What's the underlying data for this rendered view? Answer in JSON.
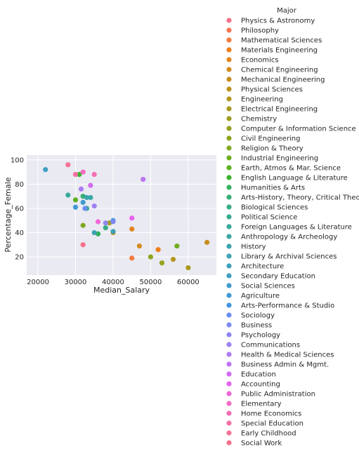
{
  "chart_data": {
    "type": "scatter",
    "title": "",
    "xlabel": "Median_Salary",
    "ylabel": "Percentage_Female",
    "xlim": [
      17000,
      67500
    ],
    "ylim": [
      5,
      104
    ],
    "x_ticks": [
      20000,
      30000,
      40000,
      50000,
      60000
    ],
    "x_tick_labels": [
      "20000",
      "30000",
      "40000",
      "50000",
      "60000"
    ],
    "y_ticks": [
      20,
      40,
      60,
      80,
      100
    ],
    "y_tick_labels": [
      "20",
      "40",
      "60",
      "80",
      "100"
    ],
    "grid": true,
    "legend_title": "Major",
    "legend_placement": "right, outside plot",
    "series": [
      {
        "name": "Physics & Astronomy",
        "color": "#f77189",
        "points": [
          [
            32000,
            30
          ]
        ]
      },
      {
        "name": "Philosophy",
        "color": "#f7754f",
        "points": [
          [
            30000,
            88
          ]
        ]
      },
      {
        "name": "Mathematical Sciences",
        "color": "#f57a3e",
        "points": [
          [
            45000,
            19
          ]
        ]
      },
      {
        "name": "Materials Engineering",
        "color": "#ef7f1a",
        "points": [
          [
            52000,
            26
          ]
        ]
      },
      {
        "name": "Economics",
        "color": "#e2851d",
        "points": [
          [
            45000,
            43
          ]
        ]
      },
      {
        "name": "Chemical Engineering",
        "color": "#d48a1d",
        "points": [
          [
            47000,
            29
          ]
        ]
      },
      {
        "name": "Mechanical Engineering",
        "color": "#c78e1e",
        "points": [
          [
            65000,
            32
          ]
        ]
      },
      {
        "name": "Physical Sciences",
        "color": "#bc921e",
        "points": [
          [
            40000,
            40
          ]
        ]
      },
      {
        "name": "Engineering",
        "color": "#b2961f",
        "points": [
          [
            56000,
            18
          ]
        ]
      },
      {
        "name": "Electrical Engineering",
        "color": "#a89a20",
        "points": [
          [
            60000,
            11
          ]
        ]
      },
      {
        "name": "Chemistry",
        "color": "#a09d20",
        "points": [
          [
            39000,
            48
          ]
        ]
      },
      {
        "name": "Computer & Information Science",
        "color": "#96a120",
        "points": [
          [
            53000,
            15
          ]
        ]
      },
      {
        "name": "Civil Engineering",
        "color": "#8ca520",
        "points": [
          [
            50000,
            20
          ]
        ]
      },
      {
        "name": "Religion & Theory",
        "color": "#80a920",
        "points": [
          [
            32000,
            46
          ]
        ]
      },
      {
        "name": "Industrial Engineering",
        "color": "#70ad21",
        "points": [
          [
            57000,
            29
          ]
        ]
      },
      {
        "name": "Earth, Atmos & Mar. Science",
        "color": "#5cb11f",
        "points": [
          [
            30000,
            67
          ]
        ]
      },
      {
        "name": "English Language & Literature",
        "color": "#39b42b",
        "points": [
          [
            31000,
            88
          ]
        ]
      },
      {
        "name": "Humanities & Arts",
        "color": "#34b15e",
        "points": [
          [
            36000,
            39
          ]
        ]
      },
      {
        "name": "Arts-History, Theory, Critical Theory",
        "color": "#36ae76",
        "points": [
          [
            32000,
            70
          ]
        ]
      },
      {
        "name": "Biological Sciences",
        "color": "#37ac86",
        "points": [
          [
            38000,
            44
          ]
        ]
      },
      {
        "name": "Political Science",
        "color": "#38aa92",
        "points": [
          [
            33000,
            60
          ]
        ]
      },
      {
        "name": "Foreign Languages & Literature",
        "color": "#39a99c",
        "points": [
          [
            28000,
            71
          ]
        ]
      },
      {
        "name": "Anthropology & Archeology",
        "color": "#3aa7a5",
        "points": [
          [
            34000,
            69
          ]
        ]
      },
      {
        "name": "History",
        "color": "#3ba5ad",
        "points": [
          [
            33000,
            69
          ]
        ]
      },
      {
        "name": "Library & Archival Sciences",
        "color": "#3ca3b4",
        "points": [
          [
            35000,
            40
          ]
        ]
      },
      {
        "name": "Architecture",
        "color": "#3da1bc",
        "points": [
          [
            40000,
            41
          ]
        ]
      },
      {
        "name": "Secondary Education",
        "color": "#3e9fc3",
        "points": [
          [
            22000,
            92
          ]
        ]
      },
      {
        "name": "Social Sciences",
        "color": "#3f9ccb",
        "points": [
          [
            32000,
            65
          ]
        ]
      },
      {
        "name": "Agriculture",
        "color": "#4099d4",
        "points": [
          [
            30000,
            61
          ]
        ]
      },
      {
        "name": "Arts-Performance & Studio",
        "color": "#4294e0",
        "points": [
          [
            40000,
            50
          ]
        ]
      },
      {
        "name": "Sociology",
        "color": "#6a8ef1",
        "points": [
          [
            32500,
            60
          ]
        ]
      },
      {
        "name": "Business",
        "color": "#7e8af2",
        "points": [
          [
            40000,
            49
          ]
        ]
      },
      {
        "name": "Psychology",
        "color": "#8f86f2",
        "points": [
          [
            38000,
            48
          ]
        ]
      },
      {
        "name": "Communications",
        "color": "#9e81f3",
        "points": [
          [
            35000,
            62
          ]
        ]
      },
      {
        "name": "Health & Medical Sciences",
        "color": "#ad7cf3",
        "points": [
          [
            31500,
            76
          ]
        ]
      },
      {
        "name": "Business Admin & Mgmt.",
        "color": "#bd75f3",
        "points": [
          [
            48000,
            84
          ]
        ]
      },
      {
        "name": "Education",
        "color": "#d16bf3",
        "points": [
          [
            34000,
            79
          ]
        ]
      },
      {
        "name": "Accounting",
        "color": "#e663ee",
        "points": [
          [
            45000,
            52
          ]
        ]
      },
      {
        "name": "Public Administration",
        "color": "#f068d7",
        "points": [
          [
            36000,
            49
          ]
        ]
      },
      {
        "name": "Elementary",
        "color": "#f36cc4",
        "points": [
          [
            32000,
            90
          ]
        ]
      },
      {
        "name": "Home Economics",
        "color": "#f46eb4",
        "points": [
          [
            35000,
            88
          ]
        ]
      },
      {
        "name": "Special Education",
        "color": "#f570a6",
        "points": [
          [
            30000,
            88
          ]
        ]
      },
      {
        "name": "Early Childhood",
        "color": "#f67298",
        "points": [
          [
            28000,
            96
          ]
        ]
      },
      {
        "name": "Social Work",
        "color": "#f7738c",
        "points": []
      }
    ]
  }
}
